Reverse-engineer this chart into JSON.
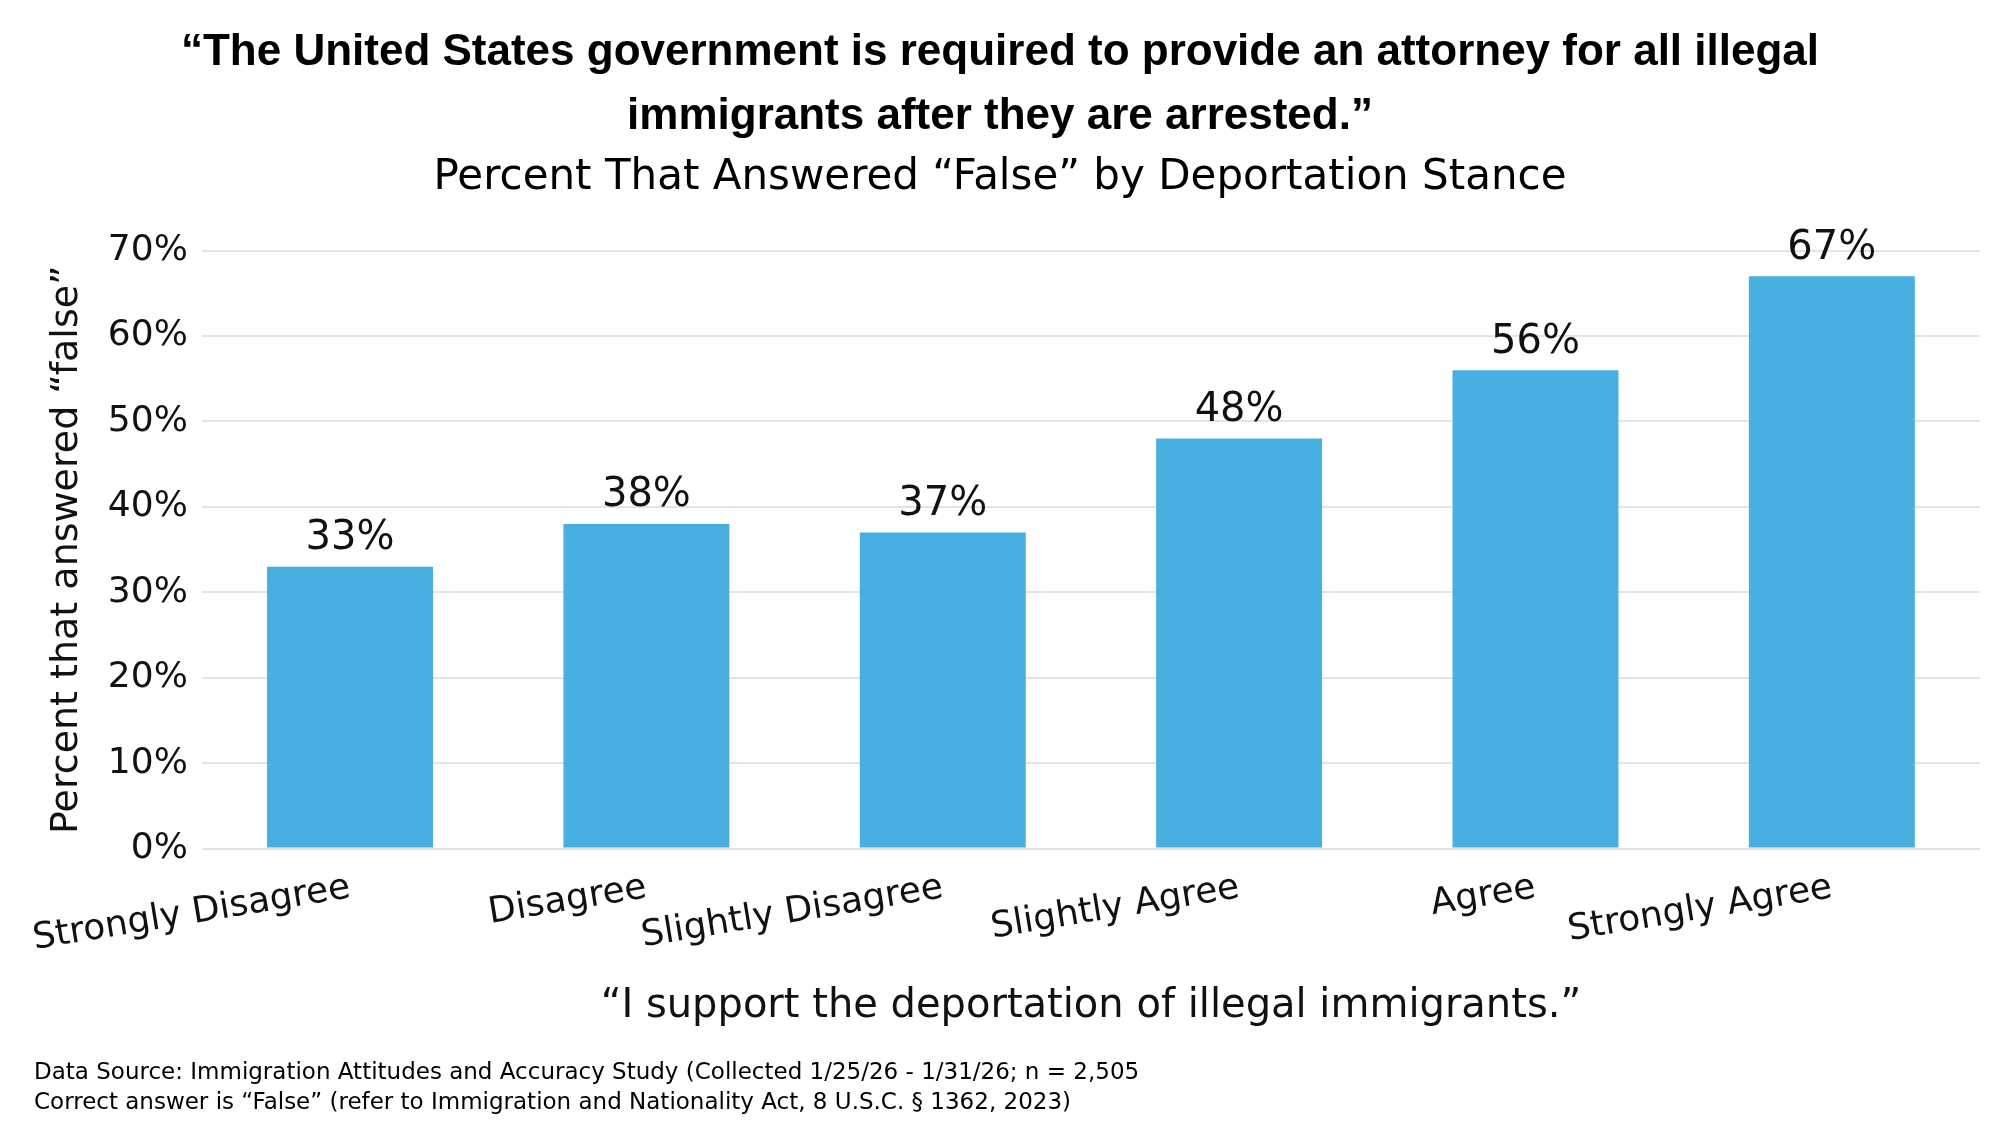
{
  "chart_data": {
    "type": "bar",
    "title": "“The United States government is required to provide an attorney for all illegal immigrants after they are arrested.”",
    "subtitle": "Percent That Answered “False” by Deportation Stance",
    "xlabel": "“I support the deportation of illegal immigrants.”",
    "ylabel": "Percent that answered “false”",
    "categories": [
      "Strongly Disagree",
      "Disagree",
      "Slightly Disagree",
      "Slightly Agree",
      "Agree",
      "Strongly Agree"
    ],
    "values": [
      33,
      38,
      37,
      48,
      56,
      67
    ],
    "color": "#47b0e0",
    "ylim": [
      0,
      70
    ],
    "yticks": [
      {
        "value": 0,
        "label": "0%"
      },
      {
        "value": 10,
        "label": "10%"
      },
      {
        "value": 20,
        "label": "20%"
      },
      {
        "value": 30,
        "label": "30%"
      },
      {
        "value": 40,
        "label": "40%"
      },
      {
        "value": 50,
        "label": "50%"
      },
      {
        "value": 60,
        "label": "60%"
      },
      {
        "value": 70,
        "label": "70%"
      }
    ],
    "grid": "y",
    "legend": false,
    "value_labels": [
      "33%",
      "38%",
      "37%",
      "48%",
      "56%",
      "67%"
    ],
    "annotations": [
      "Data Source: Immigration Attitudes and Accuracy Study (Collected 1/25/26 - 1/31/26; n = 2,505",
      "Correct answer is “False” (refer to Immigration and Nationality Act, 8 U.S.C. § 1362, 2023)"
    ]
  }
}
